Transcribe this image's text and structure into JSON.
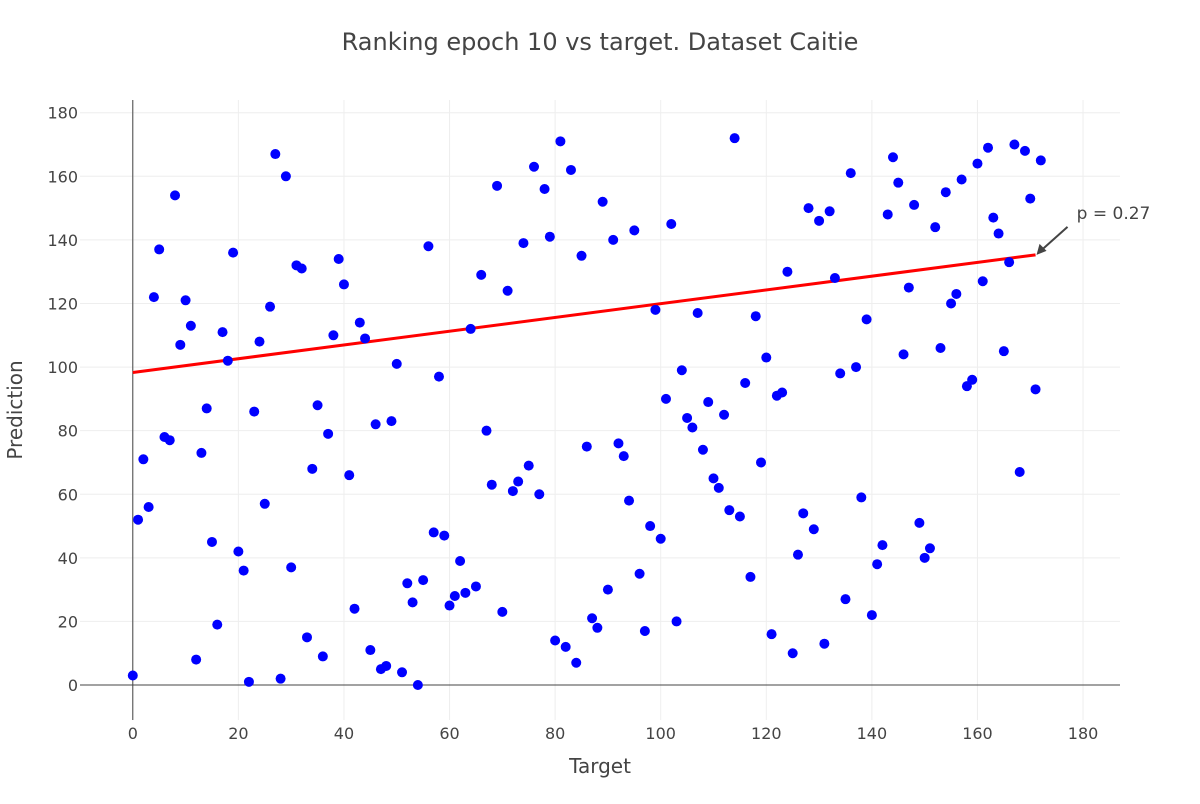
{
  "chart_data": {
    "type": "scatter",
    "title": "Ranking epoch 10 vs target. Dataset Caitie",
    "xlabel": "Target",
    "ylabel": "Prediction",
    "xlim": [
      -10,
      187
    ],
    "ylim": [
      -11,
      184
    ],
    "x_ticks": [
      0,
      20,
      40,
      60,
      80,
      100,
      120,
      140,
      160,
      180
    ],
    "y_ticks": [
      0,
      20,
      40,
      60,
      80,
      100,
      120,
      140,
      160,
      180
    ],
    "grid": true,
    "colors": {
      "points": "#0000ff",
      "fit_line": "#ff0000",
      "text": "#444444",
      "grid": "#eeeeee",
      "axis": "#444444"
    },
    "series": [
      {
        "points": [
          [
            0,
            3
          ],
          [
            1,
            52
          ],
          [
            2,
            71
          ],
          [
            3,
            56
          ],
          [
            4,
            122
          ],
          [
            5,
            137
          ],
          [
            6,
            78
          ],
          [
            7,
            77
          ],
          [
            8,
            154
          ],
          [
            9,
            107
          ],
          [
            10,
            121
          ],
          [
            11,
            113
          ],
          [
            12,
            8
          ],
          [
            13,
            73
          ],
          [
            14,
            87
          ],
          [
            15,
            45
          ],
          [
            16,
            19
          ],
          [
            17,
            111
          ],
          [
            18,
            102
          ],
          [
            19,
            136
          ],
          [
            20,
            42
          ],
          [
            21,
            36
          ],
          [
            22,
            1
          ],
          [
            23,
            86
          ],
          [
            24,
            108
          ],
          [
            25,
            57
          ],
          [
            26,
            119
          ],
          [
            27,
            167
          ],
          [
            28,
            2
          ],
          [
            29,
            160
          ],
          [
            30,
            37
          ],
          [
            31,
            132
          ],
          [
            32,
            131
          ],
          [
            33,
            15
          ],
          [
            34,
            68
          ],
          [
            35,
            88
          ],
          [
            36,
            9
          ],
          [
            37,
            79
          ],
          [
            38,
            110
          ],
          [
            39,
            134
          ],
          [
            40,
            126
          ],
          [
            41,
            66
          ],
          [
            42,
            24
          ],
          [
            43,
            114
          ],
          [
            44,
            109
          ],
          [
            45,
            11
          ],
          [
            46,
            82
          ],
          [
            47,
            5
          ],
          [
            48,
            6
          ],
          [
            49,
            83
          ],
          [
            50,
            101
          ],
          [
            51,
            4
          ],
          [
            52,
            32
          ],
          [
            53,
            26
          ],
          [
            54,
            0
          ],
          [
            55,
            33
          ],
          [
            56,
            138
          ],
          [
            57,
            48
          ],
          [
            58,
            97
          ],
          [
            59,
            47
          ],
          [
            60,
            25
          ],
          [
            61,
            28
          ],
          [
            62,
            39
          ],
          [
            63,
            29
          ],
          [
            64,
            112
          ],
          [
            65,
            31
          ],
          [
            66,
            129
          ],
          [
            67,
            80
          ],
          [
            68,
            63
          ],
          [
            69,
            157
          ],
          [
            70,
            23
          ],
          [
            71,
            124
          ],
          [
            72,
            61
          ],
          [
            73,
            64
          ],
          [
            74,
            139
          ],
          [
            75,
            69
          ],
          [
            76,
            163
          ],
          [
            77,
            60
          ],
          [
            78,
            156
          ],
          [
            79,
            141
          ],
          [
            80,
            14
          ],
          [
            81,
            171
          ],
          [
            82,
            12
          ],
          [
            83,
            162
          ],
          [
            84,
            7
          ],
          [
            85,
            135
          ],
          [
            86,
            75
          ],
          [
            87,
            21
          ],
          [
            88,
            18
          ],
          [
            89,
            152
          ],
          [
            90,
            30
          ],
          [
            91,
            140
          ],
          [
            92,
            76
          ],
          [
            93,
            72
          ],
          [
            94,
            58
          ],
          [
            95,
            143
          ],
          [
            96,
            35
          ],
          [
            97,
            17
          ],
          [
            98,
            50
          ],
          [
            99,
            118
          ],
          [
            100,
            46
          ],
          [
            101,
            90
          ],
          [
            102,
            145
          ],
          [
            103,
            20
          ],
          [
            104,
            99
          ],
          [
            105,
            84
          ],
          [
            106,
            81
          ],
          [
            107,
            117
          ],
          [
            108,
            74
          ],
          [
            109,
            89
          ],
          [
            110,
            65
          ],
          [
            111,
            62
          ],
          [
            112,
            85
          ],
          [
            113,
            55
          ],
          [
            114,
            172
          ],
          [
            115,
            53
          ],
          [
            116,
            95
          ],
          [
            117,
            34
          ],
          [
            118,
            116
          ],
          [
            119,
            70
          ],
          [
            120,
            103
          ],
          [
            121,
            16
          ],
          [
            122,
            91
          ],
          [
            123,
            92
          ],
          [
            124,
            130
          ],
          [
            125,
            10
          ],
          [
            126,
            41
          ],
          [
            127,
            54
          ],
          [
            128,
            150
          ],
          [
            129,
            49
          ],
          [
            130,
            146
          ],
          [
            131,
            13
          ],
          [
            132,
            149
          ],
          [
            133,
            128
          ],
          [
            134,
            98
          ],
          [
            135,
            27
          ],
          [
            136,
            161
          ],
          [
            137,
            100
          ],
          [
            138,
            59
          ],
          [
            139,
            115
          ],
          [
            140,
            22
          ],
          [
            141,
            38
          ],
          [
            142,
            44
          ],
          [
            143,
            148
          ],
          [
            144,
            166
          ],
          [
            145,
            158
          ],
          [
            146,
            104
          ],
          [
            147,
            125
          ],
          [
            148,
            151
          ],
          [
            149,
            51
          ],
          [
            150,
            40
          ],
          [
            151,
            43
          ],
          [
            152,
            144
          ],
          [
            153,
            106
          ],
          [
            154,
            155
          ],
          [
            155,
            120
          ],
          [
            156,
            123
          ],
          [
            157,
            159
          ],
          [
            158,
            94
          ],
          [
            159,
            96
          ],
          [
            160,
            164
          ],
          [
            161,
            127
          ],
          [
            162,
            169
          ],
          [
            163,
            147
          ],
          [
            164,
            142
          ],
          [
            165,
            105
          ],
          [
            166,
            133
          ],
          [
            167,
            170
          ],
          [
            168,
            67
          ],
          [
            169,
            168
          ],
          [
            170,
            153
          ],
          [
            171,
            93
          ],
          [
            172,
            165
          ]
        ]
      }
    ],
    "fit_line": {
      "x": [
        0,
        171
      ],
      "y": [
        98.3,
        135.3
      ]
    },
    "annotation": {
      "text": "p = 0.27",
      "x": 171,
      "y": 135.3
    }
  }
}
